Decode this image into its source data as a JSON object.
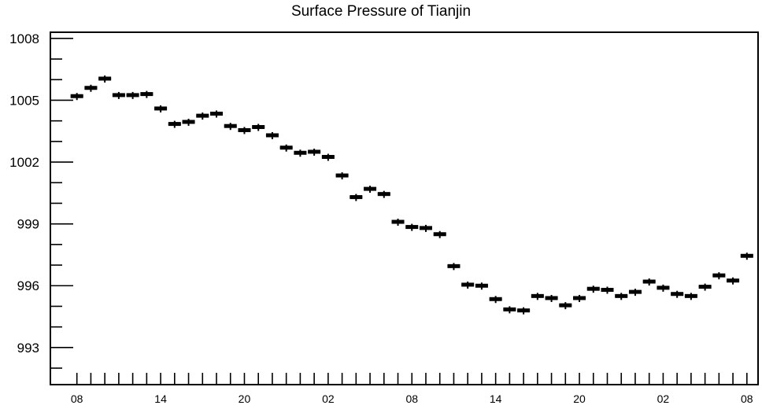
{
  "chart_data": {
    "type": "box",
    "title": "Surface Pressure of Tianjin",
    "xlabel": "",
    "ylabel": "",
    "ylim": [
      991.2,
      1008.3
    ],
    "y_ticks": [
      "993",
      "996",
      "999",
      "1002",
      "1005",
      "1008"
    ],
    "x_tick_labels": [
      "08",
      "14",
      "20",
      "02",
      "08",
      "14",
      "20",
      "02",
      "08"
    ],
    "x_tick_hours": [
      8,
      14,
      20,
      26,
      32,
      38,
      44,
      50,
      56
    ],
    "x_hours": [
      8,
      9,
      10,
      11,
      12,
      13,
      14,
      15,
      16,
      17,
      18,
      19,
      20,
      21,
      22,
      23,
      24,
      25,
      26,
      27,
      28,
      29,
      30,
      31,
      32,
      33,
      34,
      35,
      36,
      37,
      38,
      39,
      40,
      41,
      42,
      43,
      44,
      45,
      46,
      47,
      48,
      49,
      50,
      51,
      52,
      53,
      54,
      55,
      56
    ],
    "values": [
      1005.2,
      1005.6,
      1006.05,
      1005.25,
      1005.25,
      1005.3,
      1004.6,
      1003.85,
      1003.95,
      1004.25,
      1004.35,
      1003.75,
      1003.55,
      1003.7,
      1003.3,
      1002.7,
      1002.45,
      1002.5,
      1002.25,
      1001.35,
      1000.3,
      1000.7,
      1000.45,
      999.1,
      998.85,
      998.8,
      998.5,
      996.95,
      996.05,
      996.0,
      995.35,
      994.85,
      994.8,
      995.5,
      995.4,
      995.05,
      995.4,
      995.85,
      995.8,
      995.5,
      995.7,
      996.2,
      995.9,
      995.6,
      995.5,
      995.95,
      996.5,
      996.25,
      997.45
    ],
    "grid": false,
    "legend": "none"
  }
}
